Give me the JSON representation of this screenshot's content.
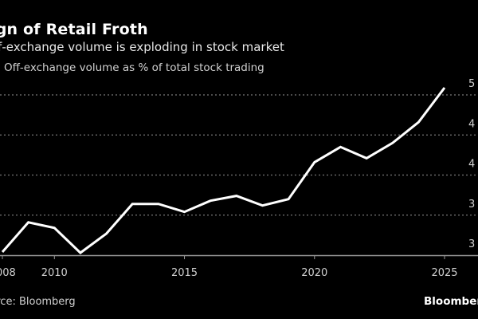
{
  "header": {
    "title": "ign of Retail Froth",
    "subtitle": "ff-exchange volume is exploding in stock market",
    "legend_label": "Off-exchange volume as % of total stock trading"
  },
  "footer": {
    "source": "urce: Bloomberg",
    "logo": "Bloomberg"
  },
  "colors": {
    "background": "#000000",
    "line": "#ffffff",
    "grid": "#777777",
    "axis": "#999999"
  },
  "chart_data": {
    "type": "line",
    "title": "Sign of Retail Froth",
    "subtitle": "Off-exchange volume is exploding in stock market",
    "xlabel": "",
    "ylabel": "",
    "x": [
      2008,
      2009,
      2010,
      2011,
      2012,
      2013,
      2014,
      2015,
      2016,
      2017,
      2018,
      2019,
      2020,
      2021,
      2022,
      2023,
      2024,
      2025
    ],
    "series": [
      {
        "name": "Off-exchange volume as % of total stock trading",
        "values": [
          30.4,
          34.1,
          33.4,
          30.3,
          32.7,
          36.4,
          36.4,
          35.4,
          36.8,
          37.4,
          36.2,
          37.0,
          41.6,
          43.5,
          42.1,
          44.0,
          46.6,
          50.9
        ]
      }
    ],
    "xticks": [
      2008,
      2010,
      2015,
      2020,
      2025
    ],
    "xtick_labels": [
      "008",
      "2010",
      "2015",
      "2020",
      "2025"
    ],
    "yticks": [
      30,
      35,
      40,
      45,
      50
    ],
    "ytick_labels": [
      "3",
      "3",
      "4",
      "4",
      "5"
    ],
    "xlim": [
      2008,
      2025
    ],
    "ylim": [
      30,
      50
    ],
    "y_axis_side": "right",
    "grid": "horizontal dotted",
    "legend": "top-left",
    "source": "Source: Bloomberg"
  }
}
